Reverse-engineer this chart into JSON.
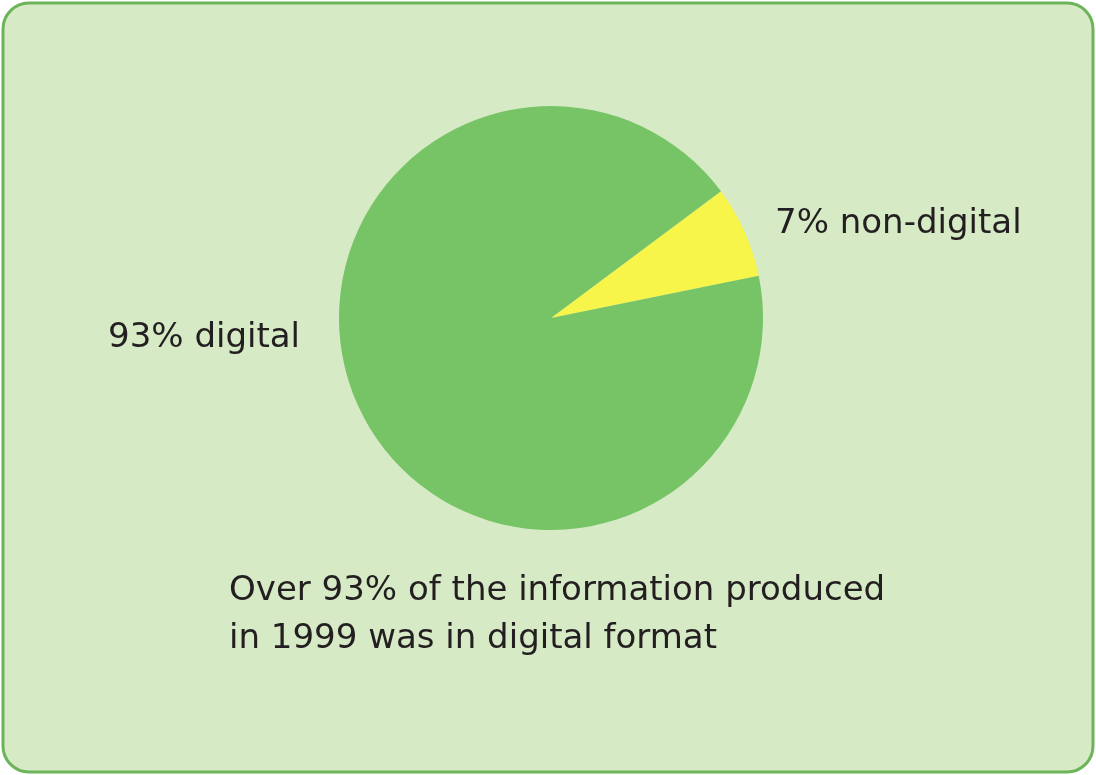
{
  "chart_data": {
    "type": "pie",
    "title": "Over 93% of the information produced in 1999 was in digital format",
    "categories": [
      "7% non-digital",
      "93% digital"
    ],
    "values": [
      7,
      93
    ],
    "colors": [
      "#f7f54a",
      "#77c466"
    ]
  }
}
